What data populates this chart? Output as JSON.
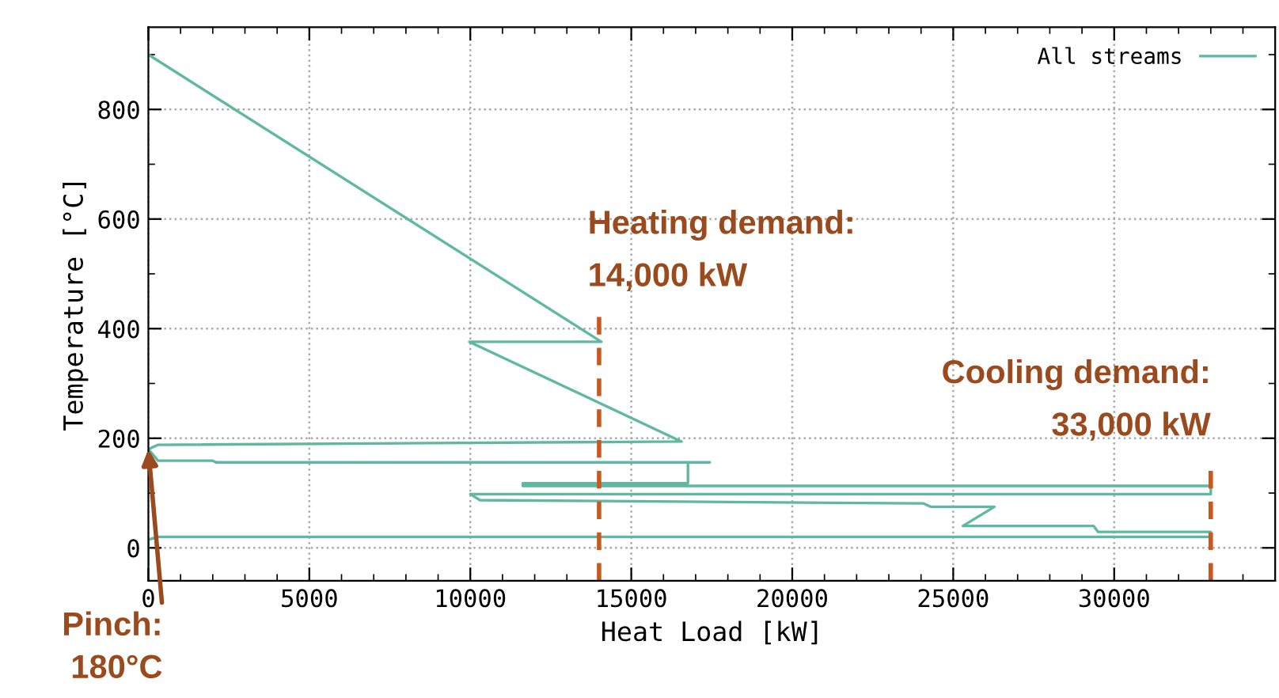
{
  "chart_data": {
    "type": "line",
    "xlabel": "Heat Load [kW]",
    "ylabel": "Temperature [°C]",
    "series": [
      {
        "name": "All streams",
        "color": "#5fb8a0",
        "x": [
          0,
          14070,
          9970,
          16560,
          300,
          0,
          300,
          2000,
          2100,
          17440,
          16760,
          16760,
          11630,
          11630,
          33000,
          33000,
          10000,
          10300,
          15000,
          24080,
          24300,
          26280,
          25300,
          29360,
          29500,
          33000,
          33000,
          300,
          0,
          0
        ],
        "values": [
          900,
          376,
          376,
          194,
          188,
          180,
          159,
          159,
          156,
          156,
          156,
          118,
          118,
          113,
          113,
          98,
          98,
          87,
          85,
          81,
          75,
          75,
          40,
          40,
          29,
          29,
          20,
          20,
          15,
          -32
        ]
      }
    ],
    "xlim": [
      0,
      35000
    ],
    "ylim": [
      -60,
      950
    ],
    "xticks": [
      0,
      5000,
      10000,
      15000,
      20000,
      25000,
      30000
    ],
    "yticks": [
      0,
      200,
      400,
      600,
      800
    ],
    "grid": true,
    "legend": "top right",
    "marker": "none",
    "line_style": "solid",
    "ref_lines": [
      {
        "axis": "x",
        "value": 14000,
        "label": "Heating demand:\n14,000 kW",
        "color": "#c8581e",
        "line_style": "dashed"
      },
      {
        "axis": "x",
        "value": 33000,
        "label": "Cooling demand:\n33,000 kW",
        "color": "#c8581e",
        "line_style": "dashed"
      }
    ],
    "annotations": [
      {
        "text": "Pinch:\n180°C",
        "x": 0,
        "y": 180
      }
    ]
  }
}
